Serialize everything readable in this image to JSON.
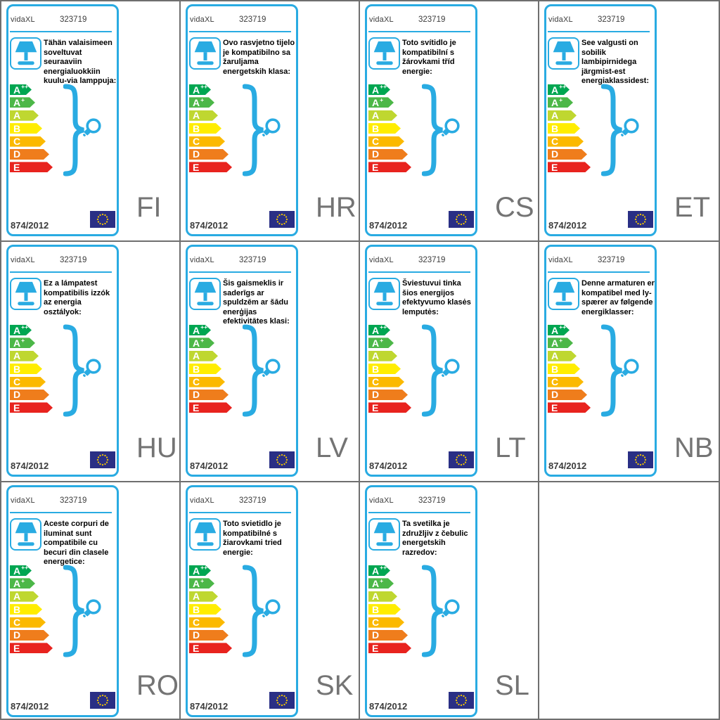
{
  "accent_color": "#29abe2",
  "grid_line_color": "#6f6f6f",
  "lang_code_color": "#747474",
  "label": {
    "brand": "vidaXL",
    "product_number": "323719",
    "regulation": "874/2012",
    "eu_flag_blue": "#2a2f85",
    "eu_flag_star_color": "#f2c500"
  },
  "energy_classes": [
    {
      "letter": "A",
      "sup": "++",
      "color": "#00a651"
    },
    {
      "letter": "A",
      "sup": "+",
      "color": "#4cb748"
    },
    {
      "letter": "A",
      "sup": "",
      "color": "#bfd730"
    },
    {
      "letter": "B",
      "sup": "",
      "color": "#ffed00"
    },
    {
      "letter": "C",
      "sup": "",
      "color": "#fbb900"
    },
    {
      "letter": "D",
      "sup": "",
      "color": "#ef7d1c"
    },
    {
      "letter": "E",
      "sup": "",
      "color": "#e8231e"
    }
  ],
  "cards": [
    {
      "lang": "FI",
      "description": "Tähän valaisimeen soveltuvat seuraaviin energialuokkiin kuulu-via lamppuja:"
    },
    {
      "lang": "HR",
      "description": "Ovo rasvjetno tijelo je kompatibilno sa žaruljama energetskih klasa:"
    },
    {
      "lang": "CS",
      "description": "Toto svítidlo je kompatibilní s žárovkami tříd energie:"
    },
    {
      "lang": "ET",
      "description": "See valgusti on sobilik lambipirnidega järgmist-est energiaklassidest:"
    },
    {
      "lang": "HU",
      "description": "Ez a lámpatest kompatibilis izzók az energia osztályok:"
    },
    {
      "lang": "LV",
      "description": "Šis gaismeklis ir saderīgs ar spuldzēm ar šādu enerģijas efektivitātes klasi:"
    },
    {
      "lang": "LT",
      "description": "Šviestuvui tinka šios energijos efektyvumo klasės lemputės:"
    },
    {
      "lang": "NB",
      "description": "Denne armaturen er kompatibel med ly-spærer av følgende energiklasser:"
    },
    {
      "lang": "RO",
      "description": "Aceste corpuri de iluminat sunt compatibile cu becuri din clasele energetice:"
    },
    {
      "lang": "SK",
      "description": "Toto svietidlo je kompatibilné s žiarovkami tried energie:"
    },
    {
      "lang": "SL",
      "description": "Ta svetilka je združljiv z čebulic energetskih razredov:"
    }
  ]
}
